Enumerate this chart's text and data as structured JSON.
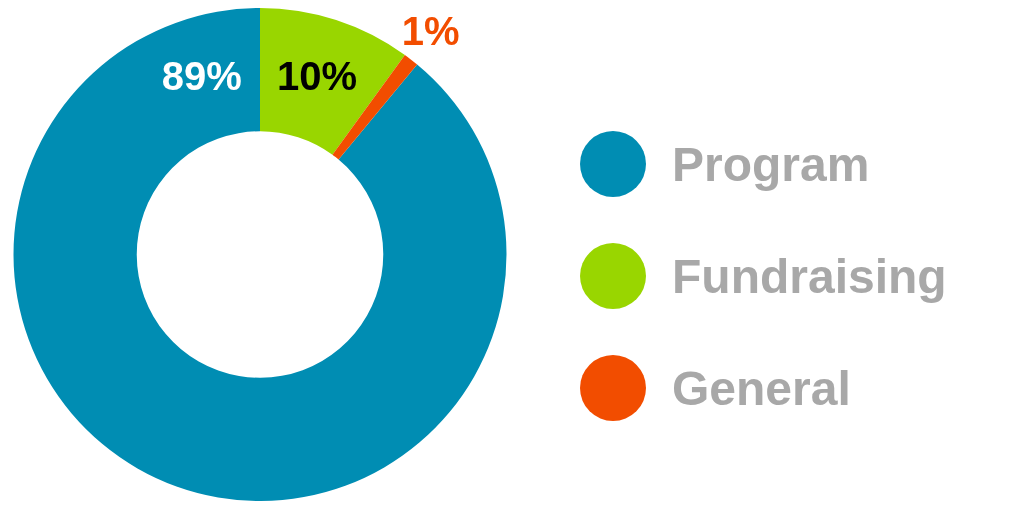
{
  "chart_data": {
    "type": "donut",
    "categories": [
      "Program",
      "Fundraising",
      "General"
    ],
    "values": [
      89,
      10,
      1
    ],
    "colors": [
      "#008db3",
      "#99d600",
      "#f24d00"
    ],
    "value_labels": [
      "89%",
      "10%",
      "1%"
    ],
    "legend": "right"
  }
}
